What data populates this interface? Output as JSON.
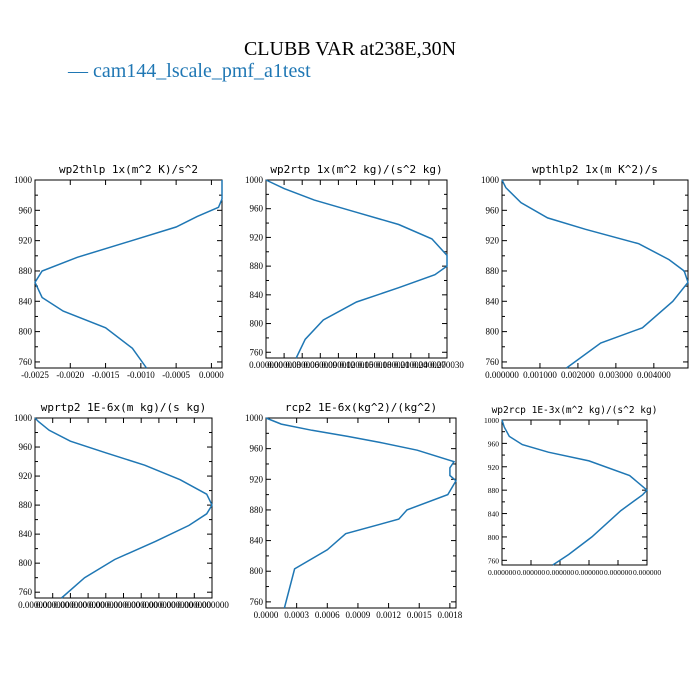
{
  "figure": {
    "title": "CLUBB VAR at238E,30N",
    "legend_label": "— cam144_lscale_pmf_a1test",
    "series_color": "#1f77b4"
  },
  "chart_data": [
    {
      "type": "line",
      "title": "wp2thlp  1x(m^2 K)/s^2",
      "xlim": [
        -0.0025,
        0.00015
      ],
      "ylim": [
        1000,
        752
      ],
      "y_inverted": true,
      "xticks": [
        -0.0025,
        -0.002,
        -0.0015,
        -0.001,
        -0.0005,
        0.0
      ],
      "xtick_labels": [
        "-0.0025",
        "-0.0020",
        "-0.0015",
        "-0.0010",
        "-0.0005",
        "0.0000"
      ],
      "yticks": [
        760,
        800,
        840,
        880,
        920,
        960,
        1000
      ],
      "ytick_labels": [
        "760",
        "800",
        "840",
        "880",
        "920",
        "960",
        "1000"
      ],
      "series": [
        {
          "x": [
            -0.00092,
            -0.00112,
            -0.0015,
            -0.0021,
            -0.0024,
            -0.0025,
            -0.0024,
            -0.0019,
            -0.0012,
            -0.0005,
            -0.0002,
            0.0001,
            0.00015,
            0.00015
          ],
          "y": [
            752,
            778,
            805,
            827,
            845,
            865,
            880,
            898,
            918,
            938,
            952,
            964,
            975,
            1000
          ]
        }
      ]
    },
    {
      "type": "line",
      "title": "wp2rtp  1x(m^2 kg)/(s^2 kg)",
      "xlim": [
        0.0,
        3e-05
      ],
      "ylim": [
        1000,
        752
      ],
      "y_inverted": true,
      "xticks": [
        0.0,
        3e-06,
        6e-06,
        9e-06,
        1.2e-05,
        1.5e-05,
        1.8e-05,
        2.1e-05,
        2.4e-05,
        2.7e-05,
        3e-05
      ],
      "xtick_labels": [
        "0.000000",
        "0.000003",
        "0.000006",
        "0.000009",
        "0.000012",
        "0.000015",
        "0.000018",
        "0.000021",
        "0.000024",
        "0.000027",
        "0.000030"
      ],
      "yticks": [
        760,
        800,
        840,
        880,
        920,
        960,
        1000
      ],
      "ytick_labels": [
        "760",
        "800",
        "840",
        "880",
        "920",
        "960",
        "1000"
      ],
      "series": [
        {
          "x": [
            5e-06,
            6.5e-06,
            9.5e-06,
            1.5e-05,
            2.2e-05,
            2.8e-05,
            3e-05,
            3e-05,
            2.75e-05,
            2.2e-05,
            1.5e-05,
            8e-06,
            3e-06,
            0.0
          ],
          "y": [
            752,
            778,
            805,
            830,
            850,
            868,
            880,
            895,
            918,
            938,
            955,
            972,
            988,
            1000
          ]
        }
      ]
    },
    {
      "type": "line",
      "title": "wpthlp2  1x(m K^2)/s",
      "xlim": [
        0.0,
        0.0049
      ],
      "ylim": [
        1000,
        752
      ],
      "y_inverted": true,
      "xticks": [
        0.0,
        0.001,
        0.002,
        0.003,
        0.004
      ],
      "xtick_labels": [
        "0.000000",
        "0.001000",
        "0.002000",
        "0.003000",
        "0.004000"
      ],
      "yticks": [
        760,
        800,
        840,
        880,
        920,
        960,
        1000
      ],
      "ytick_labels": [
        "760",
        "800",
        "840",
        "880",
        "920",
        "960",
        "1000"
      ],
      "series": [
        {
          "x": [
            0.0017,
            0.0026,
            0.0037,
            0.0045,
            0.0049,
            0.0048,
            0.0044,
            0.0036,
            0.0022,
            0.0012,
            0.0005,
            0.0001,
            0.0
          ],
          "y": [
            752,
            785,
            805,
            840,
            865,
            880,
            895,
            916,
            935,
            950,
            970,
            990,
            1000
          ]
        }
      ]
    },
    {
      "type": "line",
      "title": "wprtp2  1E-6x(m kg)/(s kg)",
      "xlim": [
        0.0,
        1.0
      ],
      "ylim": [
        1000,
        752
      ],
      "y_inverted": true,
      "xticks": [
        0.0,
        0.1,
        0.2,
        0.3,
        0.4,
        0.5,
        0.6,
        0.7,
        0.8,
        0.9,
        1.0
      ],
      "xtick_labels": [
        "0.000000",
        "0.000000",
        "0.000000",
        "0.000000",
        "0.000000",
        "0.000000",
        "0.000000",
        "0.000000",
        "0.000000",
        "0.000000",
        "0.000000"
      ],
      "yticks": [
        760,
        800,
        840,
        880,
        920,
        960,
        1000
      ],
      "ytick_labels": [
        "760",
        "800",
        "840",
        "880",
        "920",
        "960",
        "1000"
      ],
      "series": [
        {
          "x": [
            0.15,
            0.28,
            0.45,
            0.68,
            0.87,
            0.97,
            1.0,
            0.97,
            0.82,
            0.62,
            0.4,
            0.2,
            0.08,
            0.02,
            0.0
          ],
          "y": [
            752,
            780,
            805,
            830,
            852,
            868,
            880,
            895,
            915,
            935,
            952,
            968,
            983,
            995,
            1000
          ]
        }
      ]
    },
    {
      "type": "line",
      "title": "rcp2  1E-6x(kg^2)/(kg^2)",
      "xlim": [
        0.0,
        0.00186
      ],
      "ylim": [
        1000,
        752
      ],
      "y_inverted": true,
      "xticks": [
        0.0,
        0.0003,
        0.0006,
        0.0009,
        0.0012,
        0.0015,
        0.0018
      ],
      "xtick_labels": [
        "0.0000",
        "0.0003",
        "0.0006",
        "0.0009",
        "0.0012",
        "0.0015",
        "0.0018"
      ],
      "yticks": [
        760,
        800,
        840,
        880,
        920,
        960,
        1000
      ],
      "ytick_labels": [
        "760",
        "800",
        "840",
        "880",
        "920",
        "960",
        "1000"
      ],
      "series": [
        {
          "x": [
            0.00018,
            0.00028,
            0.0006,
            0.00078,
            0.0013,
            0.00138,
            0.00178,
            0.00186,
            0.0018,
            0.0018,
            0.00184,
            0.00148,
            0.00112,
            0.0008,
            0.00045,
            0.00015,
            0.0
          ],
          "y": [
            752,
            803,
            828,
            849,
            868,
            880,
            900,
            918,
            925,
            935,
            943,
            958,
            968,
            976,
            984,
            992,
            1000
          ]
        }
      ]
    },
    {
      "type": "line",
      "title": "wp2rcp  1E-3x(m^2 kg)/(s^2 kg)",
      "xlim": [
        0.0,
        1.0
      ],
      "ylim": [
        1000,
        752
      ],
      "y_inverted": true,
      "xticks": [
        0.0,
        0.2,
        0.4,
        0.6,
        0.8,
        1.0
      ],
      "xtick_labels": [
        "0.000000",
        "0.000000",
        "0.000000",
        "0.000000",
        "0.000000",
        "0.000000"
      ],
      "yticks": [
        760,
        800,
        840,
        880,
        920,
        960,
        1000
      ],
      "ytick_labels": [
        "760",
        "800",
        "840",
        "880",
        "920",
        "960",
        "1000"
      ],
      "series": [
        {
          "x": [
            0.35,
            0.46,
            0.62,
            0.82,
            0.97,
            1.0,
            0.88,
            0.6,
            0.32,
            0.14,
            0.05,
            0.015,
            0.0
          ],
          "y": [
            752,
            770,
            800,
            845,
            872,
            880,
            905,
            930,
            945,
            958,
            972,
            988,
            1000
          ]
        }
      ]
    }
  ]
}
